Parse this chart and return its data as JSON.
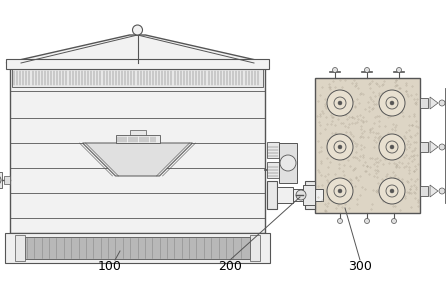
{
  "bg_color": "#ffffff",
  "line_color": "#555555",
  "figsize": [
    4.46,
    2.88
  ],
  "dpi": 100,
  "label_100": "100",
  "label_200": "200",
  "label_300": "300",
  "label_fontsize": 9
}
